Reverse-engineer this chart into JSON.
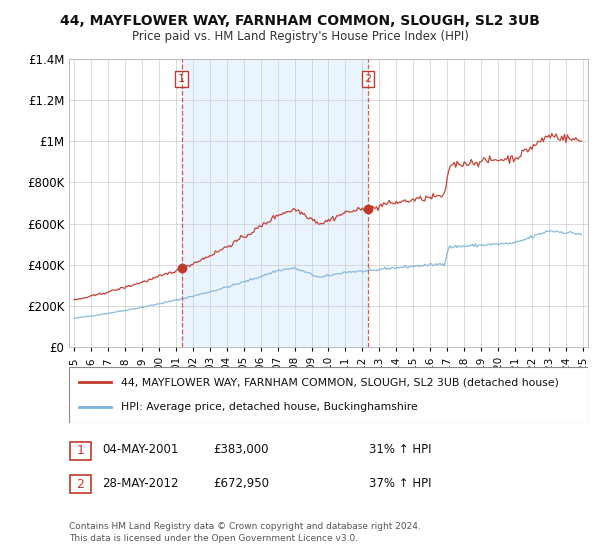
{
  "title": "44, MAYFLOWER WAY, FARNHAM COMMON, SLOUGH, SL2 3UB",
  "subtitle": "Price paid vs. HM Land Registry's House Price Index (HPI)",
  "ylim": [
    0,
    1400000
  ],
  "yticks": [
    0,
    200000,
    400000,
    600000,
    800000,
    1000000,
    1200000,
    1400000
  ],
  "ytick_labels": [
    "£0",
    "£200K",
    "£400K",
    "£600K",
    "£800K",
    "£1M",
    "£1.2M",
    "£1.4M"
  ],
  "sale1_date": "04-MAY-2001",
  "sale1_price": 383000,
  "sale1_pct": "31%",
  "sale2_date": "28-MAY-2012",
  "sale2_price": 672950,
  "sale2_pct": "37%",
  "legend_line1": "44, MAYFLOWER WAY, FARNHAM COMMON, SLOUGH, SL2 3UB (detached house)",
  "legend_line2": "HPI: Average price, detached house, Buckinghamshire",
  "footnote": "Contains HM Land Registry data © Crown copyright and database right 2024.\nThis data is licensed under the Open Government Licence v3.0.",
  "hpi_color": "#7ab4d8",
  "price_color": "#c0392b",
  "dashed_color": "#c0392b",
  "shade_color": "#ddeeff",
  "background_color": "#ffffff",
  "grid_color": "#cccccc"
}
